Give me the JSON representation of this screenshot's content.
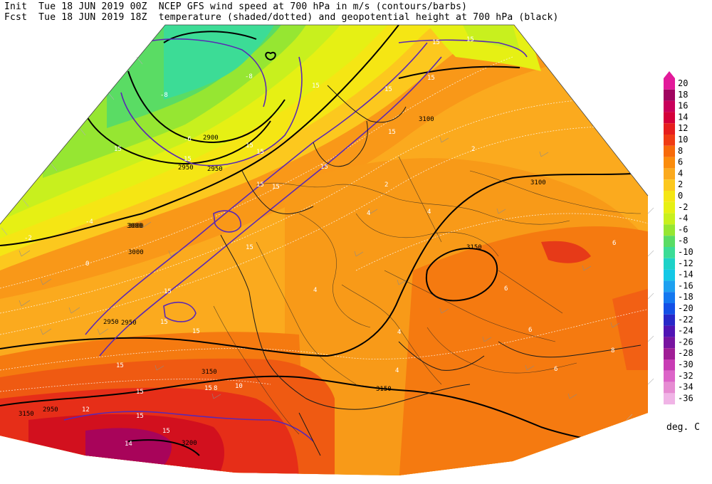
{
  "header": {
    "line1": "Init  Tue 18 JUN 2019 00Z  NCEP GFS wind speed at 700 hPa in m/s (contours/barbs)",
    "line2": "Fcst  Tue 18 JUN 2019 18Z  temperature (shaded/dotted) and geopotential height at 700 hPa (black)"
  },
  "legend": {
    "unit": "deg. C",
    "levels": [
      "20",
      "18",
      "16",
      "14",
      "12",
      "10",
      "8",
      "6",
      "4",
      "2",
      "0",
      "-2",
      "-4",
      "-6",
      "-8",
      "-10",
      "-12",
      "-14",
      "-16",
      "-18",
      "-20",
      "-22",
      "-24",
      "-26",
      "-28",
      "-30",
      "-32",
      "-34",
      "-36"
    ],
    "colors": [
      "#e21a9a",
      "#a0045f",
      "#c8005a",
      "#d4003a",
      "#e61e1e",
      "#f03c14",
      "#f76a0a",
      "#fb8c0c",
      "#fbaa1e",
      "#fcc81e",
      "#f5e614",
      "#e6f014",
      "#c8f01e",
      "#96e632",
      "#5adc64",
      "#3cdc96",
      "#1ed2c8",
      "#14c8e6",
      "#1ea0f0",
      "#1478f0",
      "#1450e6",
      "#2828c8",
      "#5014b4",
      "#7814a0",
      "#a01e96",
      "#c83cb4",
      "#dc64c8",
      "#e68cd2",
      "#f0b4e6"
    ]
  },
  "height_labels": [
    "2950",
    "2950",
    "3000",
    "2950",
    "2900",
    "2950",
    "3000",
    "3000",
    "2950",
    "3100",
    "3100",
    "3150",
    "3150",
    "3150",
    "3150",
    "3200"
  ],
  "wind_labels": [
    "15",
    "15",
    "15",
    "15",
    "15",
    "15",
    "15",
    "15",
    "15",
    "15",
    "15",
    "15",
    "15",
    "15",
    "15",
    "15",
    "15",
    "15",
    "15",
    "15",
    "15",
    "15"
  ],
  "temp_labels": [
    "-8",
    "-8",
    "-6",
    "-4",
    "-2",
    "0",
    "2",
    "4",
    "4",
    "4",
    "6",
    "6",
    "8",
    "10",
    "12",
    "14",
    "4",
    "4",
    "6",
    "6",
    "8",
    "2"
  ]
}
